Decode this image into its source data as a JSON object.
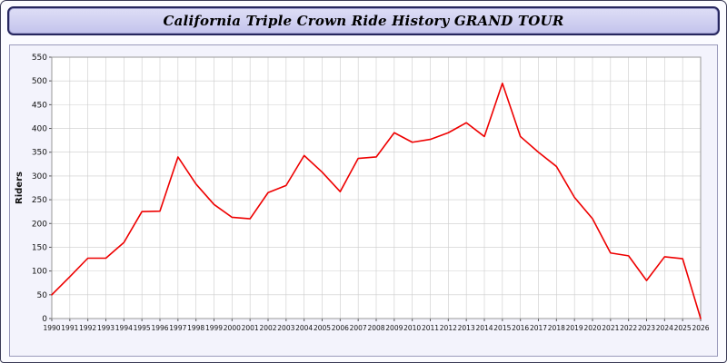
{
  "header": {
    "title": "California Triple Crown Ride History GRAND TOUR"
  },
  "chart_data": {
    "type": "line",
    "title": "California Triple Crown Ride History GRAND TOUR",
    "xlabel": "",
    "ylabel": "Riders",
    "x": [
      1990,
      1991,
      1992,
      1993,
      1994,
      1995,
      1996,
      1997,
      1998,
      1999,
      2000,
      2001,
      2002,
      2003,
      2004,
      2005,
      2006,
      2007,
      2008,
      2009,
      2010,
      2011,
      2012,
      2013,
      2014,
      2015,
      2016,
      2017,
      2018,
      2019,
      2020,
      2021,
      2022,
      2023,
      2024,
      2025,
      2026
    ],
    "series": [
      {
        "name": "Riders",
        "values": [
          50,
          88,
          127,
          127,
          160,
          225,
          226,
          340,
          283,
          240,
          213,
          210,
          265,
          280,
          343,
          308,
          267,
          337,
          340,
          391,
          371,
          377,
          391,
          412,
          383,
          495,
          383,
          350,
          320,
          255,
          210,
          138,
          132,
          80,
          130,
          126,
          0
        ]
      }
    ],
    "ylim": [
      0,
      550
    ],
    "ytick_step": 50,
    "grid": true,
    "legend": "none",
    "colors": {
      "line": "#ee0000",
      "grid": "#cccccc",
      "plot_bg": "#ffffff",
      "plot_border": "#999999",
      "axis": "#555555",
      "text": "#111111"
    }
  }
}
